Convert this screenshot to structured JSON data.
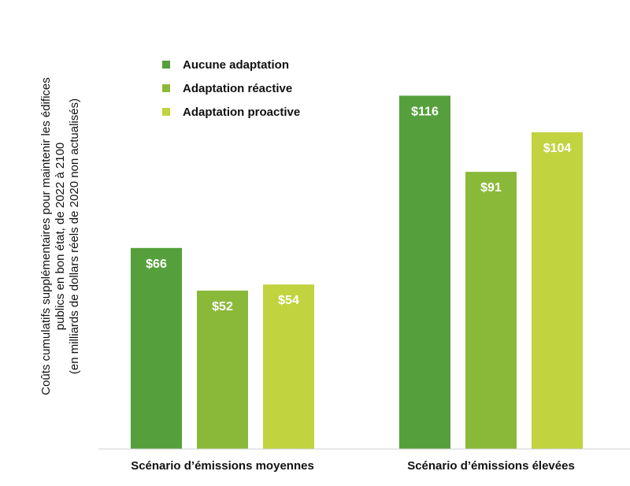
{
  "chart_data": {
    "type": "bar",
    "ylabel": [
      "Coûts cumulatifs supplémentaires pour maintenir les édifices",
      "publics en bon état, de 2022 à 2100",
      "(en milliards de dollars réels de 2020 non actualisés)"
    ],
    "categories": [
      "Scénario d’émissions moyennes",
      "Scénario d’émissions élevées"
    ],
    "series": [
      {
        "name": "Aucune adaptation",
        "color": "#55a03c",
        "values": [
          66,
          116
        ],
        "labels": [
          "$66",
          "$116"
        ]
      },
      {
        "name": "Adaptation réactive",
        "color": "#8ab93a",
        "values": [
          52,
          91
        ],
        "labels": [
          "$52",
          "$91"
        ]
      },
      {
        "name": "Adaptation proactive",
        "color": "#c1d33f",
        "values": [
          54,
          104
        ],
        "labels": [
          "$54",
          "$104"
        ]
      }
    ],
    "ylim": [
      0,
      135
    ],
    "grid": false,
    "legend_position": "top-left"
  }
}
